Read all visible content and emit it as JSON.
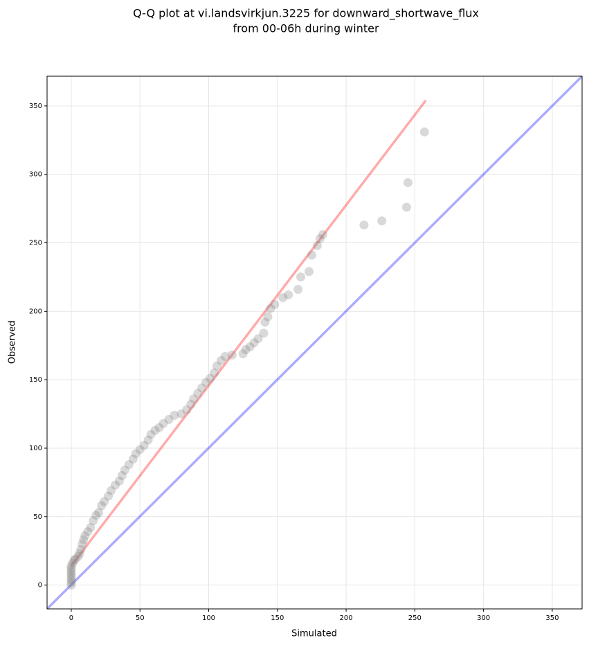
{
  "chart_data": {
    "type": "scatter",
    "title": [
      "Q-Q plot at vi.landsvirkjun.3225 for downward_shortwave_flux",
      "from 00-06h during winter"
    ],
    "x_label": "Simulated",
    "y_label": "Observed",
    "xlim": [
      -17.6,
      371.7
    ],
    "ylim": [
      -17.4,
      371.7
    ],
    "xticks": [
      0,
      50,
      100,
      150,
      200,
      250,
      300,
      350
    ],
    "yticks": [
      0,
      50,
      100,
      150,
      200,
      250,
      300,
      350
    ],
    "grid": true,
    "points": {
      "color": "#808080",
      "x": [
        0,
        0,
        0,
        0,
        0,
        0,
        0,
        0,
        1,
        2,
        3,
        5,
        6,
        7,
        8,
        9,
        10,
        12,
        14,
        16,
        18,
        20,
        22,
        24,
        27,
        29,
        32,
        35,
        37,
        39,
        42,
        45,
        47,
        50,
        53,
        56,
        58,
        61,
        64,
        67,
        71,
        75,
        80,
        84,
        87,
        89,
        92,
        95,
        98,
        101,
        104,
        106,
        109,
        112,
        117,
        125,
        127,
        130,
        133,
        136,
        140,
        141,
        143,
        145,
        148,
        154,
        158,
        165,
        167,
        173,
        175,
        179,
        181,
        183,
        213,
        226,
        244,
        245,
        257
      ],
      "y": [
        0,
        2,
        4,
        6,
        8,
        10,
        12,
        14,
        16,
        18,
        19,
        21,
        23,
        26,
        30,
        33,
        36,
        39,
        42,
        47,
        51,
        53,
        58,
        61,
        65,
        69,
        73,
        76,
        80,
        84,
        88,
        92,
        96,
        99,
        102,
        106,
        110,
        113,
        115,
        118,
        121,
        124,
        125,
        128,
        132,
        136,
        140,
        144,
        148,
        151,
        155,
        160,
        164,
        167,
        168,
        169,
        172,
        174,
        177,
        180,
        184,
        192,
        196,
        202,
        205,
        210,
        212,
        216,
        225,
        229,
        241,
        248,
        253,
        256,
        263,
        266,
        276,
        294,
        331
      ]
    },
    "lines": [
      {
        "color": "#ff0000",
        "x": [
          0,
          258
        ],
        "y": [
          14,
          354
        ]
      },
      {
        "color": "#0000ff",
        "x": [
          -17.6,
          371.7
        ],
        "y": [
          -17.4,
          371.7
        ]
      }
    ]
  }
}
